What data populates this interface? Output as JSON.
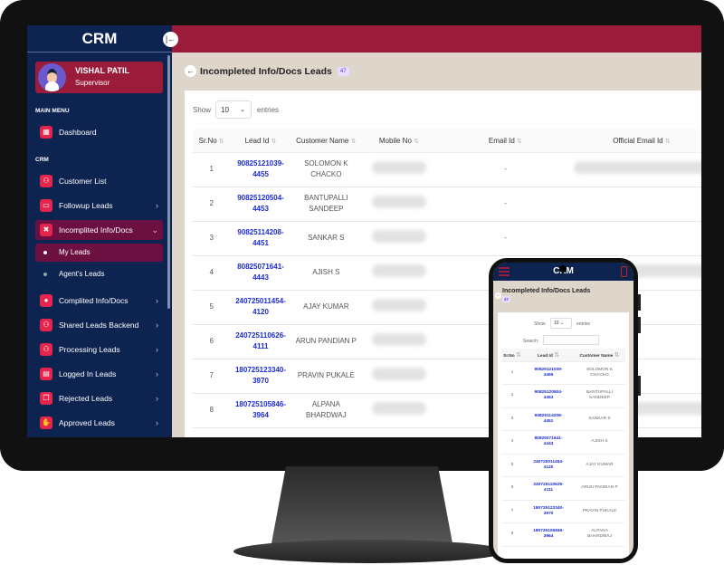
{
  "app": {
    "title": "CRM"
  },
  "user": {
    "name": "VISHAL PATIL",
    "role": "Supervisor"
  },
  "sidebar": {
    "main_menu_label": "MAIN MENU",
    "crm_label": "CRM",
    "items": [
      {
        "label": "Dashboard",
        "icon": "dashboard-icon",
        "chevron": false
      },
      {
        "label": "Customer List",
        "icon": "sitemap-icon",
        "chevron": false
      },
      {
        "label": "Followup Leads",
        "icon": "calendar-icon",
        "chevron": true
      },
      {
        "label": "Incomplited Info/Docs",
        "icon": "user-x-icon",
        "chevron": true,
        "expanded": true
      },
      {
        "label": "Complited Info/Docs",
        "icon": "badge-icon",
        "chevron": true
      },
      {
        "label": "Shared Leads Backend",
        "icon": "sitemap-icon",
        "chevron": true
      },
      {
        "label": "Processing Leads",
        "icon": "sitemap-icon",
        "chevron": true
      },
      {
        "label": "Logged In Leads",
        "icon": "id-card-icon",
        "chevron": true
      },
      {
        "label": "Rejected Leads",
        "icon": "copy-icon",
        "chevron": true
      },
      {
        "label": "Approved Leads",
        "icon": "hand-icon",
        "chevron": true
      }
    ],
    "subitems": [
      {
        "label": "My Leads",
        "active": true
      },
      {
        "label": "Agent's Leads",
        "active": false
      }
    ]
  },
  "page": {
    "title": "Incompleted Info/Docs Leads",
    "count": "47",
    "show_label": "Show",
    "entries_value": "10",
    "entries_label": "entries",
    "search_label": "Search:"
  },
  "table": {
    "columns": [
      "Sr.No",
      "Lead Id",
      "Customer Name",
      "Mobile No",
      "Email Id",
      "Official Email Id"
    ],
    "rows": [
      {
        "sr": "1",
        "lead_a": "90825121039-",
        "lead_b": "4455",
        "name_a": "SOLOMON K",
        "name_b": "CHACKO",
        "email": "-"
      },
      {
        "sr": "2",
        "lead_a": "90825120504-",
        "lead_b": "4453",
        "name_a": "BANTUPALLI",
        "name_b": "SANDEEP",
        "email": "-"
      },
      {
        "sr": "3",
        "lead_a": "90825114208-",
        "lead_b": "4451",
        "name_a": "SANKAR S",
        "name_b": "",
        "email": "-"
      },
      {
        "sr": "4",
        "lead_a": "80825071641-",
        "lead_b": "4443",
        "name_a": "AJISH S",
        "name_b": "",
        "email": ""
      },
      {
        "sr": "5",
        "lead_a": "240725011454-",
        "lead_b": "4120",
        "name_a": "AJAY KUMAR",
        "name_b": "",
        "email": ""
      },
      {
        "sr": "6",
        "lead_a": "240725110626-",
        "lead_b": "4111",
        "name_a": "ARUN PANDIAN P",
        "name_b": "",
        "email": ""
      },
      {
        "sr": "7",
        "lead_a": "180725123340-",
        "lead_b": "3970",
        "name_a": "PRAVIN PUKALE",
        "name_b": "",
        "email": ""
      },
      {
        "sr": "8",
        "lead_a": "180725105846-",
        "lead_b": "3964",
        "name_a": "ALPANA",
        "name_b": "BHARDWAJ",
        "email": ""
      }
    ]
  },
  "colors": {
    "sidebar": "#0d2350",
    "accent": "#9b1b3a",
    "icon": "#e5254e",
    "link": "#1a2bd6",
    "background": "#ded6cb"
  }
}
